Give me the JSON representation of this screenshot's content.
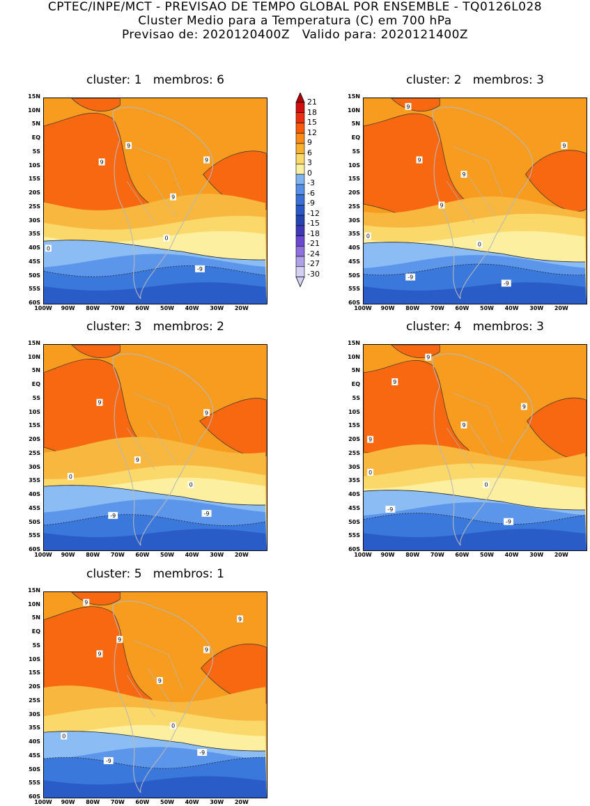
{
  "header": {
    "line1": "CPTEC/INPE/MCT - PREVISAO DE TEMPO GLOBAL POR ENSEMBLE - TQ0126L028",
    "line2": "Cluster Medio para a Temperatura (C) em 700 hPa",
    "line3": "Previsao de: 2020120400Z   Valido para: 2020121400Z"
  },
  "axes": {
    "lat_labels": [
      "15N",
      "10N",
      "5N",
      "EQ",
      "5S",
      "10S",
      "15S",
      "20S",
      "25S",
      "30S",
      "35S",
      "40S",
      "45S",
      "50S",
      "55S",
      "60S"
    ],
    "lon_labels": [
      "100W",
      "90W",
      "80W",
      "70W",
      "60W",
      "50W",
      "40W",
      "30W",
      "20W"
    ]
  },
  "colorbar": {
    "labels": [
      "21",
      "18",
      "15",
      "12",
      "9",
      "6",
      "3",
      "0",
      "-3",
      "-6",
      "-9",
      "-12",
      "-15",
      "-18",
      "-21",
      "-24",
      "-27",
      "-30"
    ],
    "colors": [
      "#b00000",
      "#d01010",
      "#e83010",
      "#fa5a0a",
      "#fc8c1a",
      "#f8b030",
      "#fbd86a",
      "#fcf0a0",
      "#80b4f0",
      "#5690e6",
      "#3a70d6",
      "#2a58c6",
      "#2644b0",
      "#4038b8",
      "#6a48d0",
      "#9070dc",
      "#b0a0e8",
      "#d4d0f4"
    ]
  },
  "palette": {
    "hot": "#f86810",
    "warm": "#f89c20",
    "mild": "#f8b840",
    "light": "#fbd86a",
    "pale": "#fcf0a0",
    "cold1": "#8cbcf4",
    "cold2": "#5c96ea",
    "cold3": "#3a78dc",
    "cold4": "#2a5cc8",
    "land": "#b8b8b8"
  },
  "panels": [
    {
      "cluster_label": "cluster:",
      "cluster": "1",
      "members_label": "membros:",
      "members": "6",
      "contour_labels": [
        "9",
        "9",
        "9",
        "9",
        "0",
        "0",
        "-9"
      ]
    },
    {
      "cluster_label": "cluster:",
      "cluster": "2",
      "members_label": "membros:",
      "members": "3",
      "contour_labels": [
        "9",
        "9",
        "9",
        "9",
        "9",
        "0",
        "0",
        "-9",
        "-9"
      ]
    },
    {
      "cluster_label": "cluster:",
      "cluster": "3",
      "members_label": "membros:",
      "members": "2",
      "contour_labels": [
        "9",
        "9",
        "9",
        "0",
        "0",
        "-9",
        "-9"
      ]
    },
    {
      "cluster_label": "cluster:",
      "cluster": "4",
      "members_label": "membros:",
      "members": "3",
      "contour_labels": [
        "9",
        "9",
        "9",
        "9",
        "9",
        "0",
        "0",
        "-9",
        "-9"
      ]
    },
    {
      "cluster_label": "cluster:",
      "cluster": "5",
      "members_label": "membros:",
      "members": "1",
      "contour_labels": [
        "9",
        "9",
        "9",
        "9",
        "9",
        "9",
        "0",
        "0",
        "-9",
        "-9"
      ]
    }
  ]
}
